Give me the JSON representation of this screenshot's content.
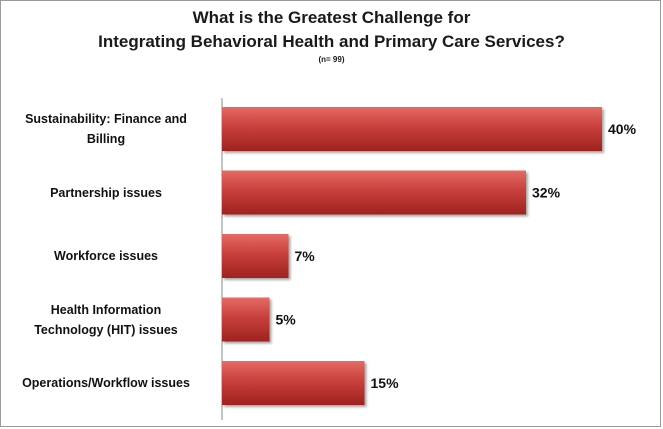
{
  "chart_data": {
    "type": "bar",
    "orientation": "horizontal",
    "title_lines": [
      "What is the Greatest Challenge for",
      "Integrating Behavioral Health and Primary Care Services?"
    ],
    "subtitle": "(n= 99)",
    "categories": [
      "Sustainability: Finance and Billing",
      "Partnership issues",
      "Workforce issues",
      "Health Information Technology (HIT) issues",
      "Operations/Workflow issues"
    ],
    "values": [
      40,
      32,
      7,
      5,
      15
    ],
    "value_labels": [
      "40%",
      "32%",
      "7%",
      "5%",
      "15%"
    ],
    "unit": "%",
    "xlim": [
      0,
      40
    ],
    "bar_color": "#c0302f",
    "grid": false,
    "legend": "none"
  }
}
